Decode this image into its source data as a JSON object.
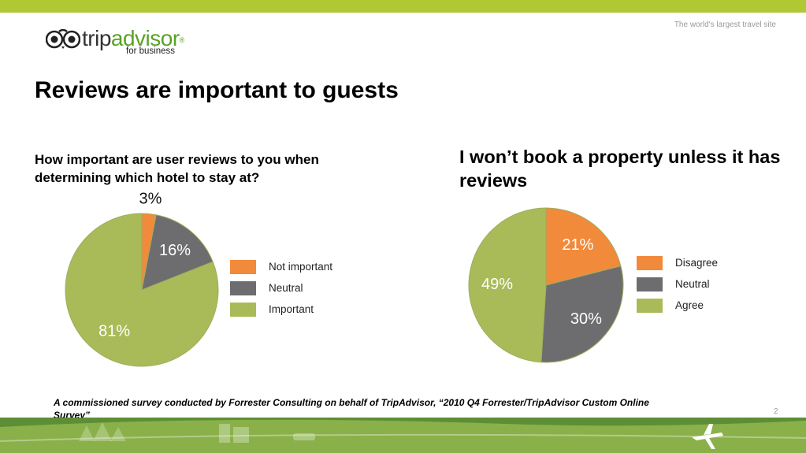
{
  "header": {
    "tagline": "The world's largest travel site",
    "logo": {
      "word_trip": "trip",
      "word_advisor": "advisor",
      "registered": "®",
      "sub": "for business"
    }
  },
  "page": {
    "title": "Reviews are important to guests",
    "slide_number": "2",
    "footnote": "A commissioned survey conducted by Forrester Consulting on behalf of TripAdvisor, “2010 Q4 Forrester/TripAdvisor Custom Online Survey”"
  },
  "colors": {
    "top_bar": "#afc834",
    "orange": "#f28a3b",
    "gray": "#6d6d6f",
    "green": "#a8bb58",
    "pie_stroke": "#9fae5e",
    "bottom_green": "#5d8e35",
    "bottom_green_light": "#8ab049"
  },
  "chart_data": [
    {
      "type": "pie",
      "title": "How important are user reviews to you when determining which hotel to stay at?",
      "labels": [
        "Not important",
        "Neutral",
        "Important"
      ],
      "values": [
        3,
        16,
        81
      ],
      "value_labels": [
        "3%",
        "16%",
        "81%"
      ],
      "legend_placement": "right"
    },
    {
      "type": "pie",
      "title": "I won’t book a property unless it has reviews",
      "labels": [
        "Disagree",
        "Neutral",
        "Agree"
      ],
      "values": [
        21,
        30,
        49
      ],
      "value_labels": [
        "21%",
        "30%",
        "49%"
      ],
      "legend_placement": "right"
    }
  ]
}
